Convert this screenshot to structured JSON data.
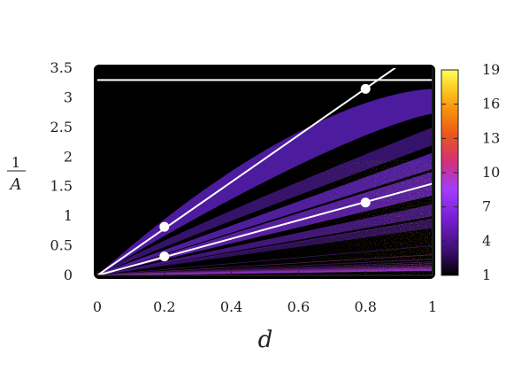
{
  "chart_data": {
    "type": "heatmap",
    "title": "",
    "xlabel": "d",
    "ylabel_numerator": "1",
    "ylabel_denominator": "A",
    "xlim": [
      0,
      1
    ],
    "ylim": [
      0,
      3.5
    ],
    "x_ticks": [
      "0",
      "0.2",
      "0.4",
      "0.6",
      "0.8",
      "1"
    ],
    "x_tick_values": [
      0,
      0.2,
      0.4,
      0.6,
      0.8,
      1
    ],
    "y_ticks": [
      "0",
      "0.5",
      "1",
      "1.5",
      "2",
      "2.5",
      "3",
      "3.5"
    ],
    "y_tick_values": [
      0,
      0.5,
      1,
      1.5,
      2,
      2.5,
      3,
      3.5
    ],
    "colorbar": {
      "min": 1,
      "max": 19,
      "ticks": [
        "1",
        "4",
        "7",
        "10",
        "13",
        "16",
        "19"
      ],
      "tick_values": [
        1,
        4,
        7,
        10,
        13,
        16,
        19
      ],
      "colormap": [
        "#000000",
        "#3b0f70",
        "#7a1fd4",
        "#a23dff",
        "#d0307a",
        "#e8551f",
        "#f98e09",
        "#fcd225",
        "#ffff60"
      ]
    },
    "background_color": "#000000",
    "overlay_lines": [
      {
        "type": "horizontal",
        "y": 3.3,
        "color": "#ffffff"
      },
      {
        "type": "line",
        "x": [
          0,
          0.9
        ],
        "y": [
          0,
          3.55
        ],
        "color": "#ffffff"
      },
      {
        "type": "line",
        "x": [
          0,
          1
        ],
        "y": [
          0,
          1.55
        ],
        "color": "#ffffff"
      }
    ],
    "marked_points": [
      {
        "x": 0.2,
        "y": 0.82
      },
      {
        "x": 0.2,
        "y": 0.32
      },
      {
        "x": 0.8,
        "y": 3.15
      },
      {
        "x": 0.8,
        "y": 1.23
      }
    ]
  }
}
